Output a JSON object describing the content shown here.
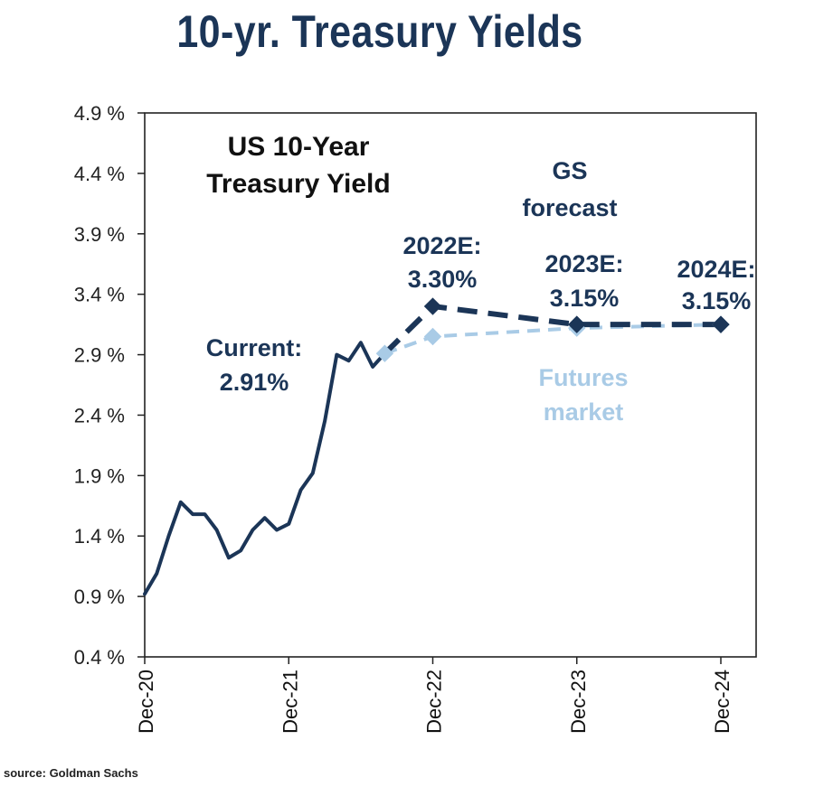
{
  "title": "10-yr. Treasury Yields",
  "source": "source: Goldman Sachs",
  "colors": {
    "title": "#1b3557",
    "historical": "#1b3557",
    "gs_forecast": "#1b3557",
    "futures": "#a9cbe6"
  },
  "chart_data": {
    "type": "line",
    "title": "US 10-Year Treasury Yield",
    "xlabel": "",
    "ylabel": "",
    "ylim": [
      0.4,
      4.9
    ],
    "yticks": [
      4.9,
      4.4,
      3.9,
      3.4,
      2.9,
      2.4,
      1.9,
      1.4,
      0.9,
      0.4
    ],
    "ytick_labels": [
      "4.9 %",
      "4.4 %",
      "3.9 %",
      "3.4 %",
      "2.9 %",
      "2.4 %",
      "1.9 %",
      "1.4 %",
      "0.9 %",
      "0.4 %"
    ],
    "xticks": [
      "Dec-20",
      "Dec-21",
      "Dec-22",
      "Dec-23",
      "Dec-24"
    ],
    "xlim": [
      "2020-12",
      "2024-12"
    ],
    "series": [
      {
        "style": "solid",
        "color": "#1b3557",
        "points": [
          [
            "2020-12",
            0.92
          ],
          [
            "2021-01",
            1.09
          ],
          [
            "2021-02",
            1.4
          ],
          [
            "2021-03",
            1.68
          ],
          [
            "2021-04",
            1.58
          ],
          [
            "2021-05",
            1.58
          ],
          [
            "2021-06",
            1.45
          ],
          [
            "2021-07",
            1.22
          ],
          [
            "2021-08",
            1.28
          ],
          [
            "2021-09",
            1.45
          ],
          [
            "2021-10",
            1.55
          ],
          [
            "2021-11",
            1.45
          ],
          [
            "2021-12",
            1.5
          ],
          [
            "2022-01",
            1.78
          ],
          [
            "2022-02",
            1.92
          ],
          [
            "2022-03",
            2.35
          ],
          [
            "2022-04",
            2.9
          ],
          [
            "2022-05",
            2.85
          ],
          [
            "2022-06",
            3.0
          ],
          [
            "2022-07",
            2.8
          ],
          [
            "2022-08",
            2.91
          ]
        ]
      },
      {
        "name": "GS forecast",
        "style": "dashed",
        "color": "#1b3557",
        "points": [
          [
            "2022-08",
            2.91
          ],
          [
            "2022-12",
            3.3
          ],
          [
            "2023-12",
            3.15
          ],
          [
            "2024-12",
            3.15
          ]
        ]
      },
      {
        "name": "Futures market",
        "style": "dashed",
        "color": "#a9cbe6",
        "points": [
          [
            "2022-08",
            2.91
          ],
          [
            "2022-12",
            3.05
          ],
          [
            "2023-12",
            3.12
          ],
          [
            "2024-12",
            3.15
          ]
        ]
      }
    ],
    "annotations": {
      "chart_title": [
        "US 10-Year",
        "Treasury Yield"
      ],
      "current": [
        "Current:",
        "2.91%"
      ],
      "gs_forecast": [
        "GS",
        "forecast"
      ],
      "e2022": [
        "2022E:",
        "3.30%"
      ],
      "e2023": [
        "2023E:",
        "3.15%"
      ],
      "e2024": [
        "2024E:",
        "3.15%"
      ],
      "futures": [
        "Futures",
        "market"
      ]
    }
  }
}
